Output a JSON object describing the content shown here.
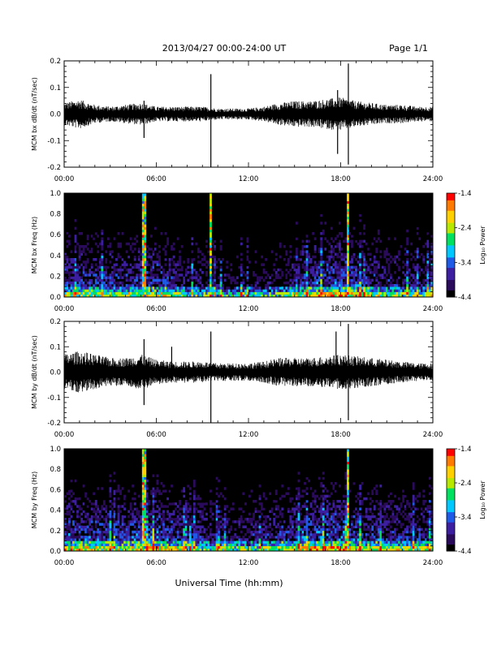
{
  "header": {
    "title": "2013/04/27  00:00-24:00 UT",
    "page": "Page 1/1"
  },
  "footer": {
    "xlabel": "Universal Time (hh:mm)"
  },
  "colors": {
    "trace": "#000000",
    "background": "#ffffff",
    "colormap": [
      "#000000",
      "#2a0a5a",
      "#3c1fa0",
      "#1e5ae6",
      "#00c8ff",
      "#00e060",
      "#b8e800",
      "#ffd000",
      "#ff7a00",
      "#ff0000"
    ]
  },
  "chart_data": [
    {
      "type": "line",
      "name": "bx-waveform",
      "ylabel": "MCM bx dB/dt (nT/sec)",
      "xlim": [
        0,
        24
      ],
      "ylim": [
        -0.2,
        0.2
      ],
      "ytick_values": [
        0.2,
        0.1,
        0.0,
        -0.1,
        -0.2
      ],
      "yticks": [
        "0.2",
        "0.1",
        "0.0",
        "-0.1",
        "-0.2"
      ],
      "xtick_values": [
        0,
        6,
        12,
        18,
        24
      ],
      "xticks": [
        "00:00",
        "06:00",
        "12:00",
        "18:00",
        "24:00"
      ],
      "envelope_hours": [
        0,
        1,
        2,
        3,
        4,
        5,
        6,
        7,
        8,
        9,
        10,
        11,
        12,
        13,
        14,
        15,
        16,
        17,
        18,
        19,
        20,
        21,
        22,
        23,
        24
      ],
      "envelope_amplitude": [
        0.03,
        0.04,
        0.025,
        0.02,
        0.025,
        0.03,
        0.02,
        0.02,
        0.02,
        0.02,
        0.015,
        0.015,
        0.015,
        0.02,
        0.03,
        0.035,
        0.035,
        0.04,
        0.045,
        0.035,
        0.03,
        0.025,
        0.025,
        0.02,
        0.02
      ],
      "spikes": [
        {
          "hour": 5.2,
          "value": 0.05
        },
        {
          "hour": 5.2,
          "value": -0.09
        },
        {
          "hour": 9.55,
          "value": 0.15
        },
        {
          "hour": 9.55,
          "value": -0.2
        },
        {
          "hour": 17.8,
          "value": 0.09
        },
        {
          "hour": 17.8,
          "value": -0.15
        },
        {
          "hour": 18.5,
          "value": 0.19
        },
        {
          "hour": 18.5,
          "value": -0.19
        }
      ]
    },
    {
      "type": "heatmap",
      "name": "bx-spectrogram",
      "ylabel": "MCM bx Freq (Hz)",
      "xlim": [
        0,
        24
      ],
      "ylim": [
        0.0,
        1.0
      ],
      "ytick_values": [
        1.0,
        0.8,
        0.6,
        0.4,
        0.2,
        0.0
      ],
      "yticks": [
        "1.0",
        "0.8",
        "0.6",
        "0.4",
        "0.2",
        "0.0"
      ],
      "xtick_values": [
        0,
        6,
        12,
        18,
        24
      ],
      "xticks": [
        "00:00",
        "06:00",
        "12:00",
        "18:00",
        "24:00"
      ],
      "colorbar_label": "Log₁₀ Power",
      "colorbar_range": [
        -4.4,
        -1.4
      ],
      "colorbar_tick_values": [
        -1.4,
        -2.4,
        -3.4,
        -4.4
      ],
      "colorbar_ticks": [
        "-1.4",
        "-2.4",
        "-3.4",
        "-4.4"
      ],
      "bright_lines_hours": [
        5.2,
        9.55,
        18.5
      ],
      "activity_hours": [
        0,
        2,
        4,
        6,
        8,
        10,
        12,
        14,
        16,
        18,
        20,
        22,
        24
      ],
      "activity_level": [
        0.55,
        0.5,
        0.5,
        0.55,
        0.45,
        0.4,
        0.35,
        0.4,
        0.55,
        0.6,
        0.5,
        0.45,
        0.45
      ]
    },
    {
      "type": "line",
      "name": "by-waveform",
      "ylabel": "MCM by dB/dt (nT/sec)",
      "xlim": [
        0,
        24
      ],
      "ylim": [
        -0.2,
        0.2
      ],
      "ytick_values": [
        0.2,
        0.1,
        0.0,
        -0.1,
        -0.2
      ],
      "yticks": [
        "0.2",
        "0.1",
        "0.0",
        "-0.1",
        "-0.2"
      ],
      "xtick_values": [
        0,
        6,
        12,
        18,
        24
      ],
      "xticks": [
        "00:00",
        "06:00",
        "12:00",
        "18:00",
        "24:00"
      ],
      "envelope_hours": [
        0,
        1,
        2,
        3,
        4,
        5,
        6,
        7,
        8,
        9,
        10,
        11,
        12,
        13,
        14,
        15,
        16,
        17,
        18,
        19,
        20,
        21,
        22,
        23,
        24
      ],
      "envelope_amplitude": [
        0.05,
        0.06,
        0.05,
        0.04,
        0.04,
        0.05,
        0.035,
        0.03,
        0.03,
        0.03,
        0.025,
        0.025,
        0.025,
        0.03,
        0.04,
        0.04,
        0.04,
        0.045,
        0.05,
        0.045,
        0.04,
        0.035,
        0.03,
        0.025,
        0.025
      ],
      "spikes": [
        {
          "hour": 5.2,
          "value": 0.13
        },
        {
          "hour": 5.2,
          "value": -0.13
        },
        {
          "hour": 7.0,
          "value": 0.1
        },
        {
          "hour": 9.55,
          "value": 0.16
        },
        {
          "hour": 9.55,
          "value": -0.2
        },
        {
          "hour": 17.7,
          "value": 0.16
        },
        {
          "hour": 18.5,
          "value": 0.19
        },
        {
          "hour": 18.5,
          "value": -0.19
        }
      ]
    },
    {
      "type": "heatmap",
      "name": "by-spectrogram",
      "ylabel": "MCM by Freq (Hz)",
      "xlim": [
        0,
        24
      ],
      "ylim": [
        0.0,
        1.0
      ],
      "ytick_values": [
        1.0,
        0.8,
        0.6,
        0.4,
        0.2,
        0.0
      ],
      "yticks": [
        "1.0",
        "0.8",
        "0.6",
        "0.4",
        "0.2",
        "0.0"
      ],
      "xtick_values": [
        0,
        6,
        12,
        18,
        24
      ],
      "xticks": [
        "00:00",
        "06:00",
        "12:00",
        "18:00",
        "24:00"
      ],
      "colorbar_label": "Log₁₀ Power",
      "colorbar_range": [
        -4.4,
        -1.4
      ],
      "colorbar_tick_values": [
        -1.4,
        -2.4,
        -3.4,
        -4.4
      ],
      "colorbar_ticks": [
        "-1.4",
        "-2.4",
        "-3.4",
        "-4.4"
      ],
      "bright_lines_hours": [
        5.2,
        18.5
      ],
      "activity_hours": [
        0,
        2,
        4,
        6,
        8,
        10,
        12,
        14,
        16,
        18,
        20,
        22,
        24
      ],
      "activity_level": [
        0.6,
        0.55,
        0.55,
        0.6,
        0.5,
        0.45,
        0.45,
        0.5,
        0.6,
        0.6,
        0.55,
        0.5,
        0.5
      ]
    }
  ]
}
